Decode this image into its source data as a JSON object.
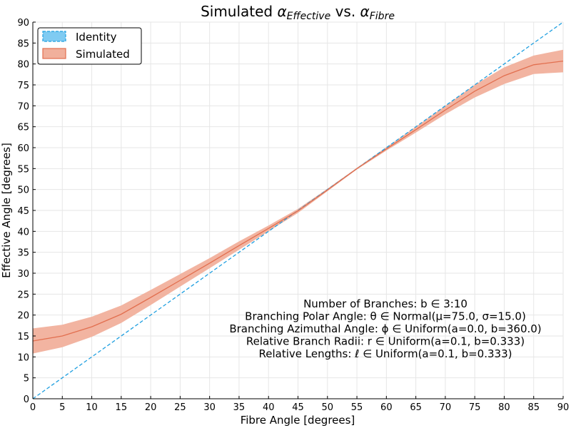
{
  "chart_data": {
    "type": "line",
    "title": {
      "prefix": "Simulated ",
      "alpha": "α",
      "sub1": "Effective",
      "middle": " vs. ",
      "sub2": "Fibre"
    },
    "xlabel": "Fibre Angle [degrees]",
    "ylabel": "Effective Angle [degrees]",
    "xlim": [
      0,
      90
    ],
    "ylim": [
      0,
      90
    ],
    "xticks": [
      0,
      5,
      10,
      15,
      20,
      25,
      30,
      35,
      40,
      45,
      50,
      55,
      60,
      65,
      70,
      75,
      80,
      85,
      90
    ],
    "yticks": [
      0,
      5,
      10,
      15,
      20,
      25,
      30,
      35,
      40,
      45,
      50,
      55,
      60,
      65,
      70,
      75,
      80,
      85,
      90
    ],
    "grid": true,
    "legend_position": "top-left",
    "series": [
      {
        "name": "Identity",
        "style": "dashed",
        "color": "#1f9fe0",
        "x": [
          0,
          90
        ],
        "y": [
          0,
          90
        ]
      },
      {
        "name": "Simulated",
        "style": "solid-with-band",
        "color": "#e26f4f",
        "band_color": "#f1b09c",
        "x": [
          0,
          5,
          10,
          15,
          20,
          25,
          30,
          35,
          40,
          45,
          50,
          55,
          60,
          65,
          70,
          75,
          80,
          85,
          90
        ],
        "y": [
          13.8,
          15.0,
          17.2,
          20.2,
          24.2,
          28.3,
          32.4,
          36.6,
          40.7,
          44.9,
          49.9,
          55.0,
          59.7,
          64.3,
          69.0,
          73.5,
          77.2,
          79.8,
          80.7
        ],
        "lower": [
          10.8,
          12.3,
          14.8,
          18.1,
          22.4,
          26.8,
          31.2,
          35.6,
          40.0,
          44.4,
          49.6,
          54.8,
          59.3,
          63.6,
          68.0,
          72.0,
          75.2,
          77.6,
          78.0
        ],
        "upper": [
          16.8,
          17.7,
          19.6,
          22.3,
          26.0,
          29.8,
          33.6,
          37.6,
          41.4,
          45.4,
          50.2,
          55.2,
          60.1,
          65.0,
          70.0,
          75.0,
          79.2,
          82.0,
          83.4
        ]
      }
    ],
    "annotations": [
      "Number of Branches: b ∈ 3:10",
      "Branching Polar Angle: θ ∈ Normal(μ=75.0, σ=15.0)",
      "Branching Azimuthal Angle: ϕ ∈ Uniform(a=0.0, b=360.0)",
      "Relative Branch Radii: r ∈ Uniform(a=0.1, b=0.333)",
      "Relative Lengths: ℓ ∈ Uniform(a=0.1, b=0.333)"
    ]
  }
}
